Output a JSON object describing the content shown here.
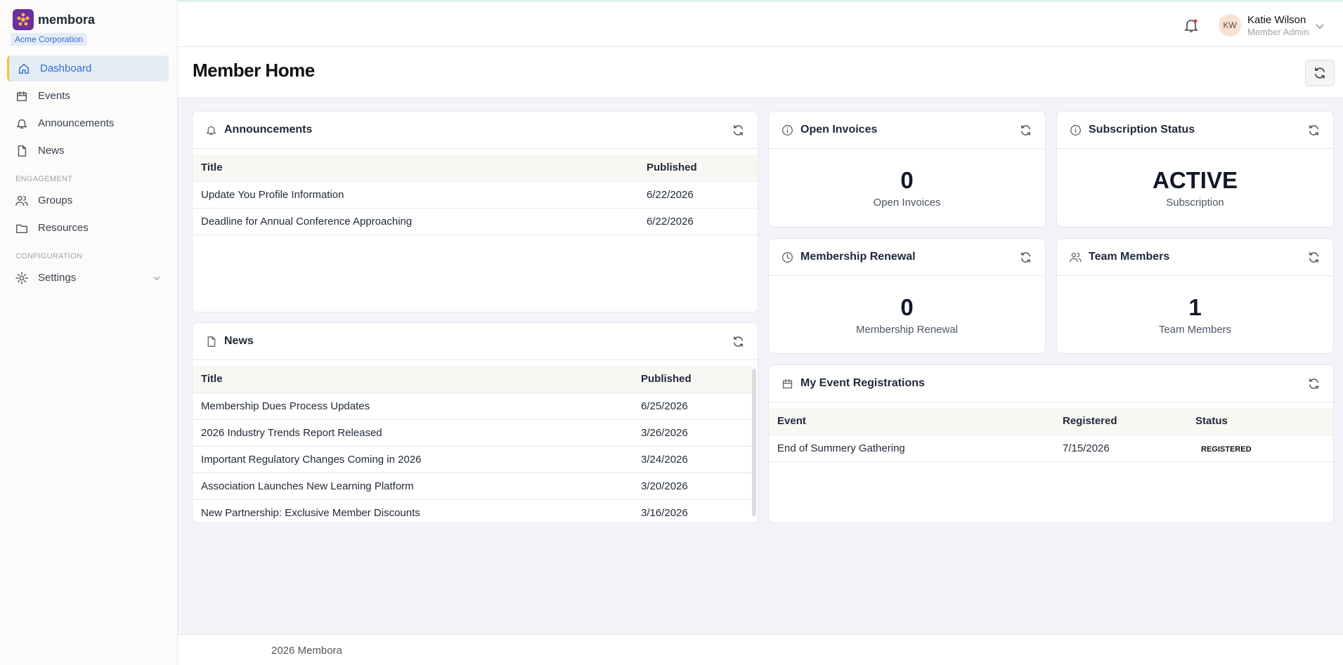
{
  "sidebar": {
    "brand": "membora",
    "org": "Acme Corporation",
    "items": [
      "Dashboard",
      "Events",
      "Announcements",
      "News"
    ],
    "sections": [
      {
        "title": "ENGAGEMENT",
        "items": [
          "Groups",
          "Resources"
        ]
      },
      {
        "title": "CONFIGURATION",
        "items": [
          "Settings"
        ]
      }
    ]
  },
  "header": {
    "initials": "KW",
    "user_name": "Katie Wilson",
    "user_role": "Member Admin"
  },
  "page": {
    "title": "Member Home"
  },
  "announcements": {
    "title": "Announcements",
    "columns": [
      "Title",
      "Published"
    ],
    "rows": [
      [
        "Update You Profile Information",
        "6/22/2026"
      ],
      [
        "Deadline for Annual Conference Approaching",
        "6/22/2026"
      ]
    ]
  },
  "news": {
    "title": "News",
    "columns": [
      "Title",
      "Published"
    ],
    "rows": [
      [
        "Membership Dues Process Updates",
        "6/25/2026"
      ],
      [
        "2026 Industry Trends Report Released",
        "3/26/2026"
      ],
      [
        "Important Regulatory Changes Coming in 2026",
        "3/24/2026"
      ],
      [
        "Association Launches New Learning Platform",
        "3/20/2026"
      ],
      [
        "New Partnership: Exclusive Member Discounts",
        "3/16/2026"
      ]
    ]
  },
  "stats": [
    {
      "title": "Open Invoices",
      "value": 0,
      "label": "Open Invoices"
    },
    {
      "title": "Subscription Status",
      "value": "ACTIVE",
      "label": "Subscription"
    },
    {
      "title": "Membership Renewal",
      "value": 0,
      "label": "Membership Renewal"
    },
    {
      "title": "Team Members",
      "value": 1,
      "label": "Team Members"
    }
  ],
  "events": {
    "title": "My Event Registrations",
    "columns": [
      "Event",
      "Registered",
      "Status"
    ],
    "rows": [
      [
        "End of Summery Gathering",
        "7/15/2026",
        "REGISTERED"
      ]
    ]
  },
  "footer": {
    "text": "2026 Membora"
  }
}
